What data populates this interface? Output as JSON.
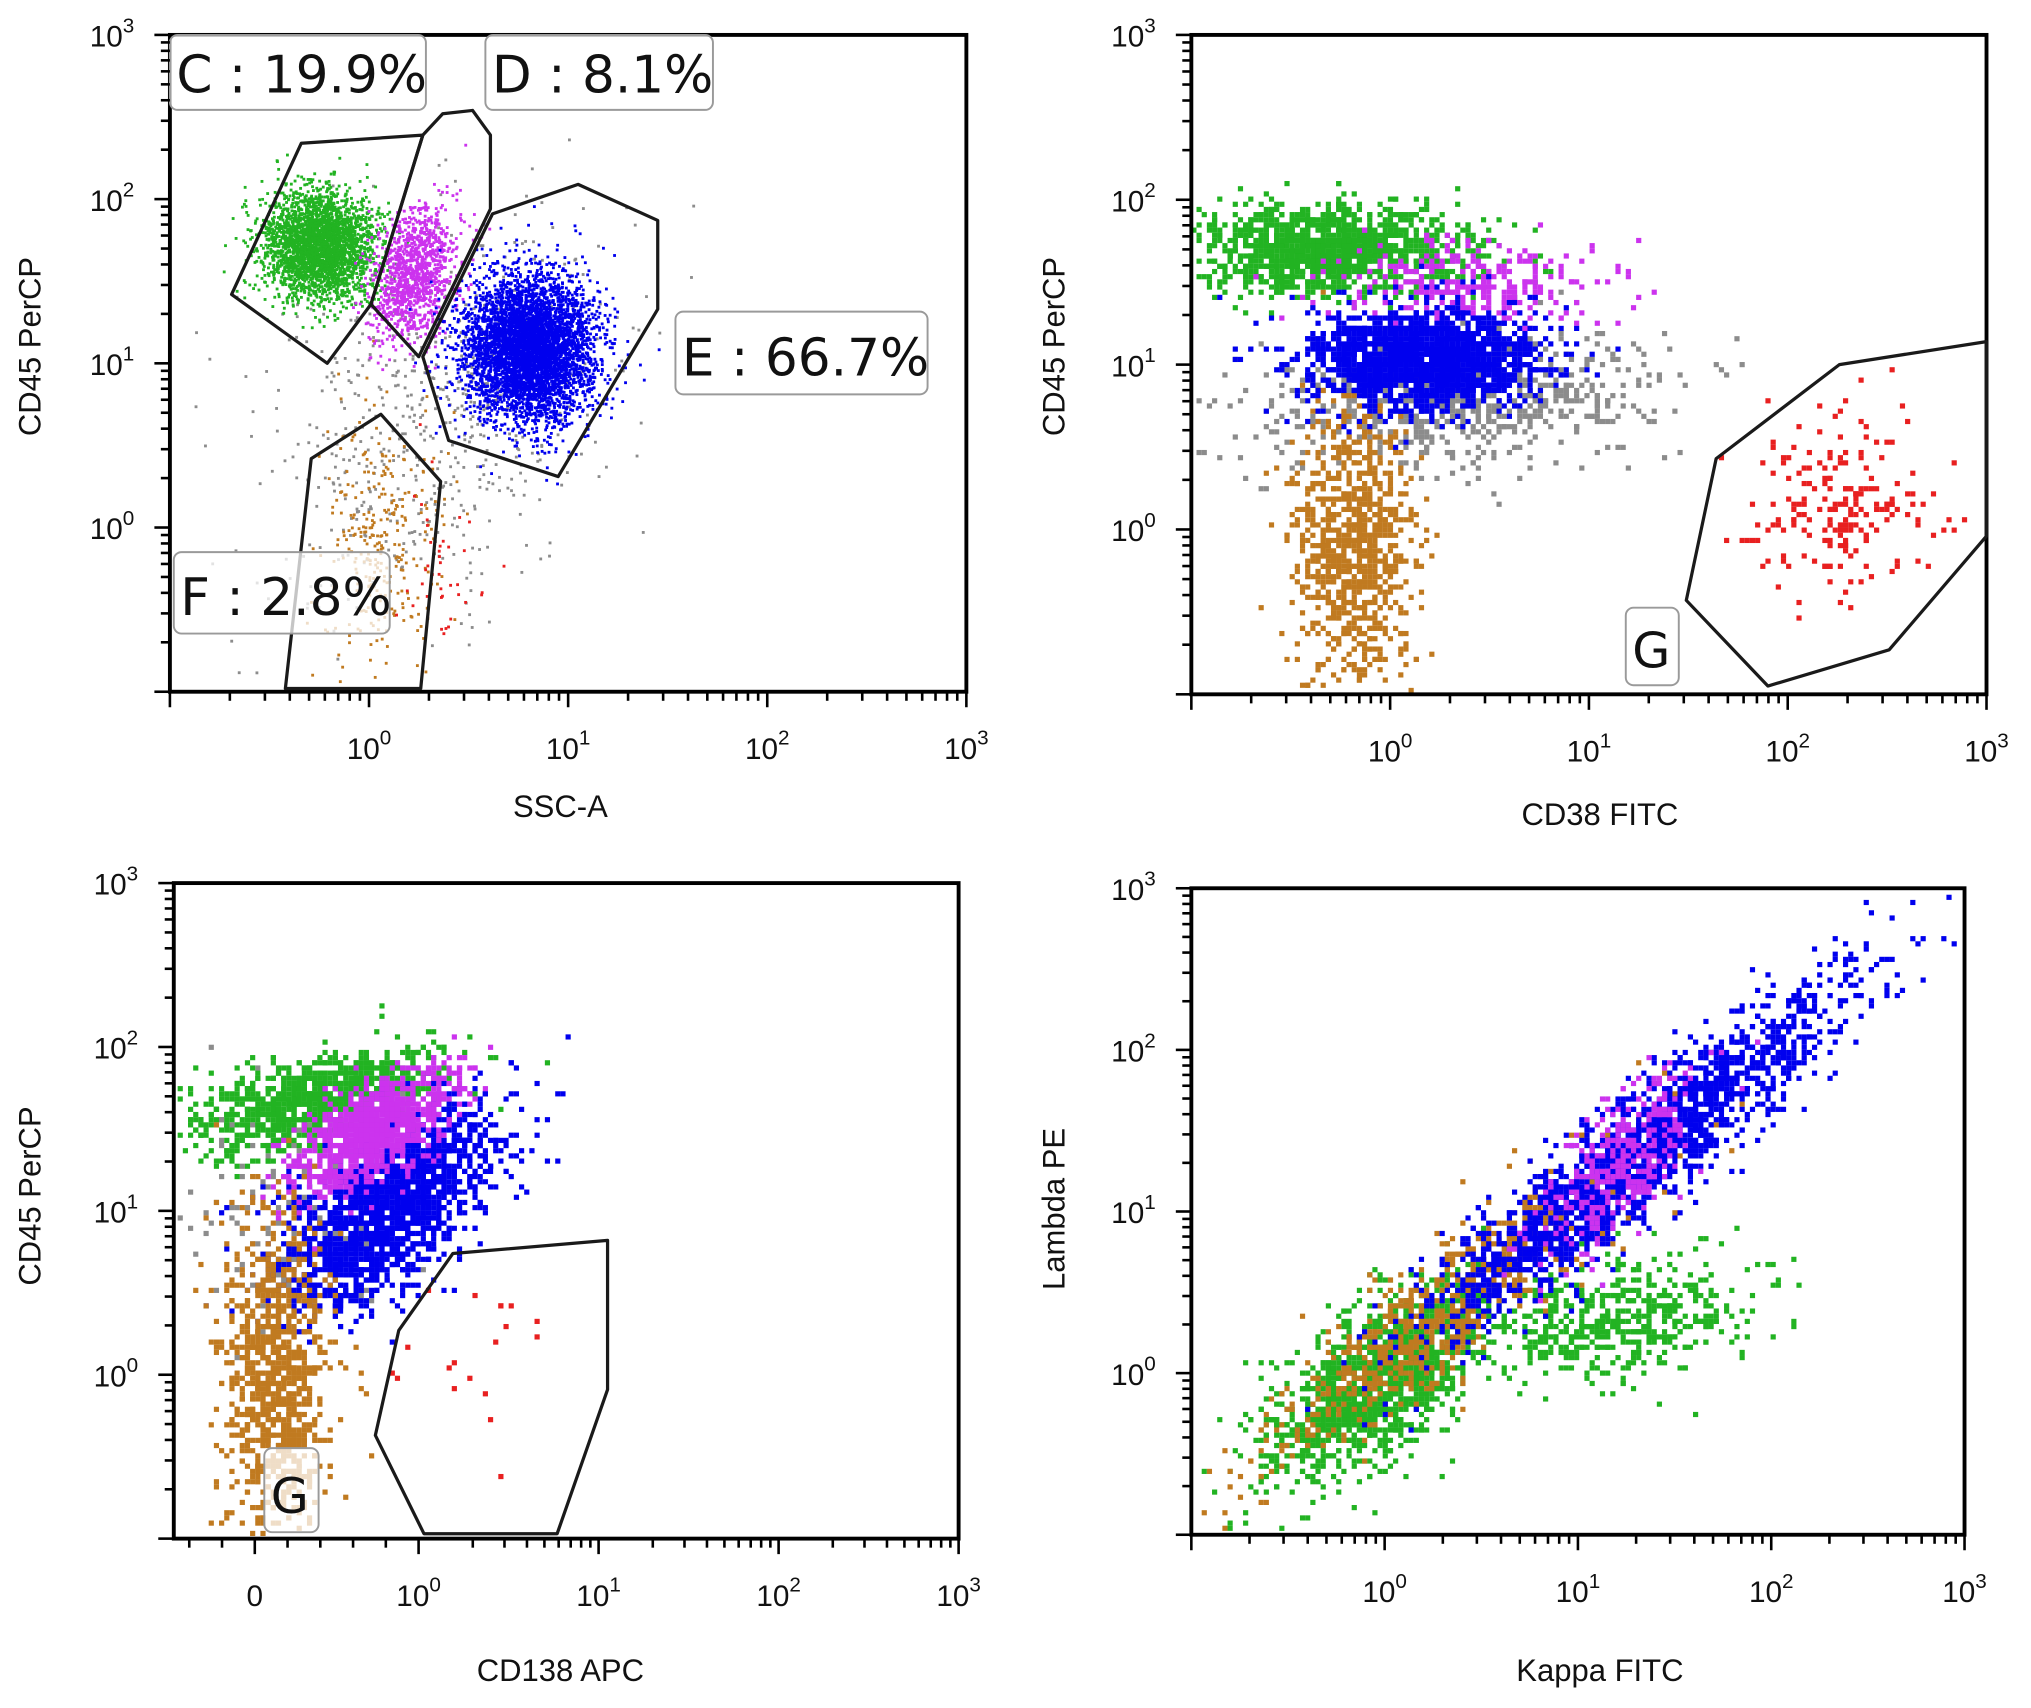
{
  "colors": {
    "green": "#22b322",
    "magenta": "#cc33ee",
    "blue": "#0000ee",
    "gray": "#8c8c8c",
    "brown": "#c07a20",
    "red": "#e82020",
    "axis": "#000000",
    "gate": "#1a1a1a"
  },
  "chart_data": [
    {
      "type": "scatter",
      "xlabel": "SSC-A",
      "ylabel": "CD45 PerCP",
      "xscale": "log10",
      "yscale": "log10",
      "xlim": [
        -1,
        3
      ],
      "ylim": [
        -1,
        3
      ],
      "grid": false,
      "x_ticks": [
        {
          "v": 0,
          "base": "10",
          "exp": "0"
        },
        {
          "v": 1,
          "base": "10",
          "exp": "1"
        },
        {
          "v": 2,
          "base": "10",
          "exp": "2"
        },
        {
          "v": 3,
          "base": "10",
          "exp": "3"
        }
      ],
      "y_ticks": [
        {
          "v": 0,
          "base": "10",
          "exp": "0"
        },
        {
          "v": 1,
          "base": "10",
          "exp": "1"
        },
        {
          "v": 2,
          "base": "10",
          "exp": "2"
        },
        {
          "v": 3,
          "base": "10",
          "exp": "3"
        }
      ],
      "gates": [
        {
          "label": "C : 19.9%",
          "points": [
            [
              -0.34,
              2.34
            ],
            [
              0.27,
              2.39
            ],
            [
              0.01,
              1.36
            ],
            [
              -0.21,
              1.0
            ],
            [
              -0.69,
              1.42
            ]
          ]
        },
        {
          "label": "D : 8.1%",
          "points": [
            [
              0.27,
              2.39
            ],
            [
              0.37,
              2.52
            ],
            [
              0.52,
              2.54
            ],
            [
              0.61,
              2.39
            ],
            [
              0.61,
              1.94
            ],
            [
              0.25,
              1.04
            ],
            [
              0.01,
              1.36
            ]
          ]
        },
        {
          "label": "E : 66.7%",
          "points": [
            [
              0.62,
              1.91
            ],
            [
              1.05,
              2.09
            ],
            [
              1.45,
              1.87
            ],
            [
              1.45,
              1.33
            ],
            [
              0.95,
              0.31
            ],
            [
              0.4,
              0.53
            ],
            [
              0.27,
              1.04
            ]
          ]
        },
        {
          "label": "F : 2.8%",
          "points": [
            [
              -0.29,
              0.42
            ],
            [
              0.06,
              0.69
            ],
            [
              0.36,
              0.28
            ],
            [
              0.26,
              -0.98
            ],
            [
              -0.42,
              -0.98
            ]
          ]
        }
      ],
      "populations": [
        {
          "color": "gray",
          "center": [
            0.3,
            0.7
          ],
          "sd": [
            0.45,
            0.6
          ],
          "rho": 0.3,
          "n": 600
        },
        {
          "color": "brown",
          "center": [
            0.05,
            -0.1
          ],
          "sd": [
            0.15,
            0.4
          ],
          "rho": 0,
          "n": 300
        },
        {
          "color": "red",
          "center": [
            0.35,
            -0.2
          ],
          "sd": [
            0.1,
            0.3
          ],
          "rho": 0,
          "n": 40
        },
        {
          "color": "green",
          "center": [
            -0.25,
            1.72
          ],
          "sd": [
            0.14,
            0.16
          ],
          "rho": 0,
          "n": 3000
        },
        {
          "color": "magenta",
          "center": [
            0.22,
            1.55
          ],
          "sd": [
            0.1,
            0.2
          ],
          "rho": 0.3,
          "n": 1200
        },
        {
          "color": "blue",
          "center": [
            0.8,
            1.1
          ],
          "sd": [
            0.16,
            0.22
          ],
          "rho": 0,
          "n": 5000
        }
      ]
    },
    {
      "type": "scatter",
      "xlabel": "CD38 FITC",
      "ylabel": "CD45 PerCP",
      "xscale": "log10",
      "yscale": "log10",
      "xlim": [
        -1,
        3
      ],
      "ylim": [
        -1,
        3
      ],
      "grid": false,
      "x_ticks": [
        {
          "v": 0,
          "base": "10",
          "exp": "0"
        },
        {
          "v": 1,
          "base": "10",
          "exp": "1"
        },
        {
          "v": 2,
          "base": "10",
          "exp": "2"
        },
        {
          "v": 3,
          "base": "10",
          "exp": "3"
        }
      ],
      "y_ticks": [
        {
          "v": 0,
          "base": "10",
          "exp": "0"
        },
        {
          "v": 1,
          "base": "10",
          "exp": "1"
        },
        {
          "v": 2,
          "base": "10",
          "exp": "2"
        },
        {
          "v": 3,
          "base": "10",
          "exp": "3"
        }
      ],
      "gates": [
        {
          "label": "G",
          "points": [
            [
              1.49,
              -0.43
            ],
            [
              1.64,
              0.43
            ],
            [
              2.26,
              1.0
            ],
            [
              3.0,
              1.14
            ],
            [
              3.0,
              -0.04
            ],
            [
              2.51,
              -0.73
            ],
            [
              1.9,
              -0.95
            ]
          ]
        }
      ],
      "populations": [
        {
          "color": "gray",
          "center": [
            0.3,
            0.8
          ],
          "sd": [
            0.5,
            0.2
          ],
          "rho": 0.2,
          "n": 700
        },
        {
          "color": "brown",
          "center": [
            -0.2,
            -0.1
          ],
          "sd": [
            0.15,
            0.45
          ],
          "rho": 0,
          "n": 800
        },
        {
          "color": "green",
          "center": [
            -0.3,
            1.72
          ],
          "sd": [
            0.35,
            0.14
          ],
          "rho": 0,
          "n": 1200
        },
        {
          "color": "magenta",
          "center": [
            0.4,
            1.5
          ],
          "sd": [
            0.35,
            0.15
          ],
          "rho": 0,
          "n": 300
        },
        {
          "color": "blue",
          "center": [
            0.15,
            1.05
          ],
          "sd": [
            0.3,
            0.15
          ],
          "rho": 0,
          "n": 1600
        },
        {
          "color": "red",
          "center": [
            2.25,
            0.2
          ],
          "sd": [
            0.22,
            0.28
          ],
          "rho": 0,
          "n": 200
        }
      ]
    },
    {
      "type": "scatter",
      "xlabel": "CD138 APC",
      "ylabel": "CD45 PerCP",
      "xscale": "logicle (display units: 0 → 0, 10^n → n + 0.91)",
      "yscale": "log10",
      "xlim": [
        -0.45,
        3.91
      ],
      "ylim": [
        -1,
        3
      ],
      "grid": false,
      "x_ticks": [
        {
          "v": 0,
          "label": "0"
        },
        {
          "v": 0.91,
          "base": "10",
          "exp": "0"
        },
        {
          "v": 1.91,
          "base": "10",
          "exp": "1"
        },
        {
          "v": 2.91,
          "base": "10",
          "exp": "2"
        },
        {
          "v": 3.91,
          "base": "10",
          "exp": "3"
        }
      ],
      "y_ticks": [
        {
          "v": 0,
          "base": "10",
          "exp": "0"
        },
        {
          "v": 1,
          "base": "10",
          "exp": "1"
        },
        {
          "v": 2,
          "base": "10",
          "exp": "2"
        },
        {
          "v": 3,
          "base": "10",
          "exp": "3"
        }
      ],
      "gates": [
        {
          "label": "G",
          "points": [
            [
              1.1,
              0.74
            ],
            [
              1.96,
              0.82
            ],
            [
              1.96,
              -0.09
            ],
            [
              1.68,
              -0.97
            ],
            [
              0.94,
              -0.97
            ],
            [
              0.67,
              -0.37
            ],
            [
              0.8,
              0.27
            ]
          ]
        }
      ],
      "populations": [
        {
          "color": "gray",
          "center": [
            0.2,
            1.0
          ],
          "sd": [
            0.3,
            0.4
          ],
          "rho": 0,
          "n": 150
        },
        {
          "color": "green",
          "center": [
            0.35,
            1.7
          ],
          "sd": [
            0.35,
            0.16
          ],
          "rho": 0.5,
          "n": 900
        },
        {
          "color": "blue",
          "center": [
            0.75,
            1.05
          ],
          "sd": [
            0.3,
            0.3
          ],
          "rho": 0.6,
          "n": 1600
        },
        {
          "color": "magenta",
          "center": [
            0.65,
            1.5
          ],
          "sd": [
            0.22,
            0.18
          ],
          "rho": 0.6,
          "n": 900
        },
        {
          "color": "brown",
          "center": [
            0.1,
            -0.05
          ],
          "sd": [
            0.15,
            0.5
          ],
          "rho": 0,
          "n": 900
        },
        {
          "color": "red",
          "center": [
            1.2,
            0.1
          ],
          "sd": [
            0.25,
            0.45
          ],
          "rho": 0,
          "n": 20
        }
      ]
    },
    {
      "type": "scatter",
      "xlabel": "Kappa FITC",
      "ylabel": "Lambda PE",
      "xscale": "log10",
      "yscale": "log10",
      "xlim": [
        -1,
        3
      ],
      "ylim": [
        -1,
        3
      ],
      "grid": false,
      "x_ticks": [
        {
          "v": 0,
          "base": "10",
          "exp": "0"
        },
        {
          "v": 1,
          "base": "10",
          "exp": "1"
        },
        {
          "v": 2,
          "base": "10",
          "exp": "2"
        },
        {
          "v": 3,
          "base": "10",
          "exp": "3"
        }
      ],
      "y_ticks": [
        {
          "v": 0,
          "base": "10",
          "exp": "0"
        },
        {
          "v": 1,
          "base": "10",
          "exp": "1"
        },
        {
          "v": 2,
          "base": "10",
          "exp": "2"
        },
        {
          "v": 3,
          "base": "10",
          "exp": "3"
        }
      ],
      "gates": [],
      "populations": [
        {
          "color": "green",
          "center": [
            -0.05,
            -0.05
          ],
          "sd": [
            0.3,
            0.3
          ],
          "rho": 0.6,
          "n": 1200
        },
        {
          "color": "brown",
          "center": [
            0.4,
            0.5
          ],
          "sd": [
            0.5,
            0.5
          ],
          "rho": 0.92,
          "n": 800
        },
        {
          "color": "green",
          "center": [
            1.2,
            0.35
          ],
          "sd": [
            0.35,
            0.2
          ],
          "rho": 0.3,
          "n": 500
        },
        {
          "color": "blue",
          "center": [
            1.3,
            1.35
          ],
          "sd": [
            0.55,
            0.55
          ],
          "rho": 0.93,
          "n": 1800
        },
        {
          "color": "magenta",
          "center": [
            1.2,
            1.3
          ],
          "sd": [
            0.2,
            0.3
          ],
          "rho": 0.7,
          "n": 300
        }
      ]
    }
  ]
}
